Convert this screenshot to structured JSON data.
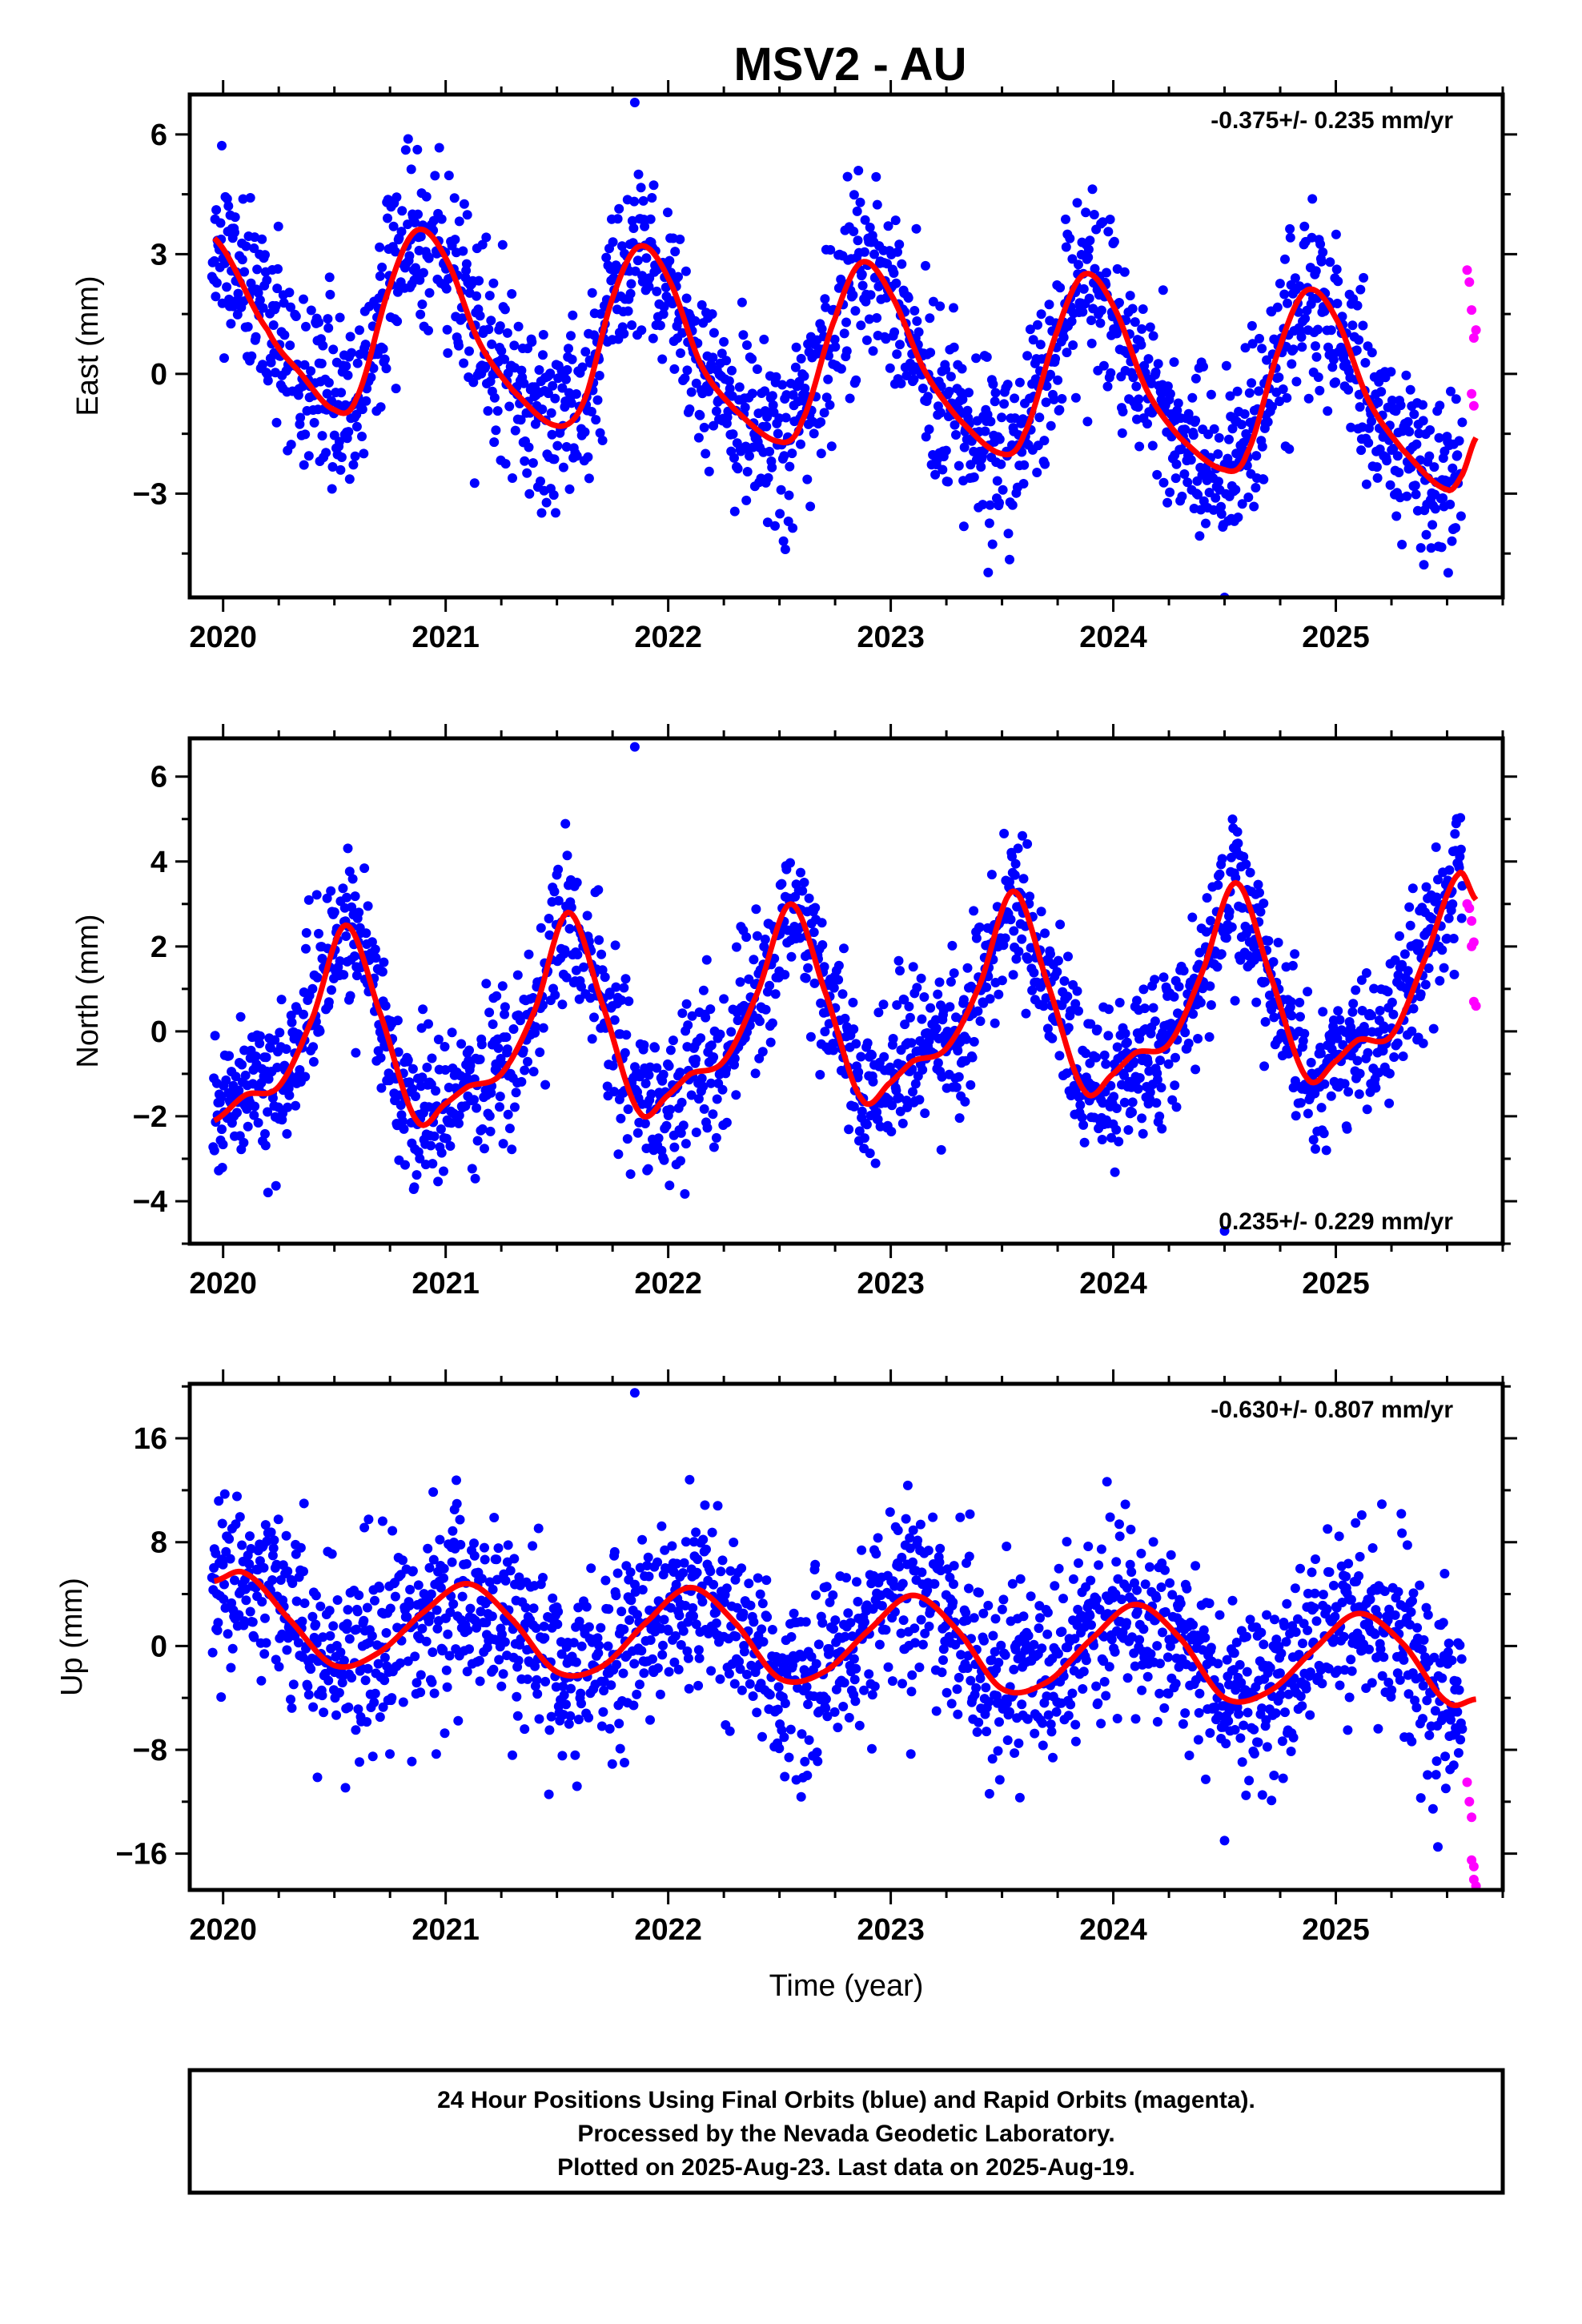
{
  "title": "MSV2 - AU",
  "colors": {
    "final": "#0000ff",
    "rapid": "#ff00ff",
    "model": "#ff0000",
    "frame": "#000000"
  },
  "footer": {
    "lines": [
      "24 Hour Positions Using Final Orbits (blue) and Rapid Orbits (magenta).",
      "Processed by the Nevada Geodetic Laboratory.",
      "Plotted on 2025-Aug-23. Last data on 2025-Aug-19."
    ]
  },
  "chart_data": [
    {
      "type": "scatter",
      "component": "east",
      "ylabel": "East (mm)",
      "xlabel": "",
      "rate_text": "-0.375+/- 0.235 mm/yr",
      "rate_position": "top-right",
      "xlim": [
        2019.85,
        2025.75
      ],
      "ylim": [
        -5.6,
        7.0
      ],
      "xticks": [
        2020,
        2021,
        2022,
        2023,
        2024,
        2025
      ],
      "yticks": [
        -3,
        0,
        3,
        6
      ],
      "model_curve": {
        "name": "",
        "x": [
          2019.96,
          2020.2,
          2020.35,
          2020.5,
          2020.6,
          2020.75,
          2020.87,
          2021.0,
          2021.15,
          2021.3,
          2021.5,
          2021.62,
          2021.75,
          2021.87,
          2022.0,
          2022.15,
          2022.3,
          2022.5,
          2022.6,
          2022.75,
          2022.87,
          2023.0,
          2023.15,
          2023.3,
          2023.5,
          2023.6,
          2023.75,
          2023.87,
          2024.0,
          2024.15,
          2024.3,
          2024.5,
          2024.6,
          2024.75,
          2024.87,
          2025.0,
          2025.15,
          2025.3,
          2025.5,
          2025.57,
          2025.63
        ],
        "y": [
          3.4,
          1.1,
          0.0,
          -0.9,
          -0.6,
          2.2,
          3.6,
          2.9,
          0.8,
          -0.4,
          -1.3,
          -0.7,
          1.9,
          3.2,
          2.4,
          0.2,
          -0.9,
          -1.7,
          -1.2,
          1.4,
          2.8,
          2.0,
          0.1,
          -1.1,
          -2.0,
          -1.5,
          1.1,
          2.5,
          1.7,
          -0.4,
          -1.6,
          -2.4,
          -2.0,
          0.7,
          2.1,
          1.4,
          -0.7,
          -1.9,
          -2.9,
          -2.5,
          -1.6
        ]
      },
      "rapid_points": {
        "x": [
          2025.59,
          2025.6,
          2025.61,
          2025.61,
          2025.62,
          2025.62,
          2025.63
        ],
        "y": [
          2.6,
          2.3,
          1.6,
          -0.5,
          0.9,
          -0.8,
          1.1
        ]
      },
      "final_scatter": {
        "x_range": [
          2019.95,
          2025.57
        ],
        "spread_mm": 1.1,
        "seed": 11,
        "outer_y": [
          -5.6,
          6.8
        ]
      }
    },
    {
      "type": "scatter",
      "component": "north",
      "ylabel": "North (mm)",
      "xlabel": "",
      "rate_text": "0.235+/- 0.229 mm/yr",
      "rate_position": "bottom-right",
      "xlim": [
        2019.85,
        2025.75
      ],
      "ylim": [
        -5.0,
        6.9
      ],
      "xticks": [
        2020,
        2021,
        2022,
        2023,
        2024,
        2025
      ],
      "yticks": [
        -4,
        -2,
        0,
        2,
        4,
        6
      ],
      "model_curve": {
        "name": "",
        "x": [
          2019.96,
          2020.1,
          2020.25,
          2020.4,
          2020.55,
          2020.7,
          2020.87,
          2021.0,
          2021.1,
          2021.25,
          2021.4,
          2021.55,
          2021.7,
          2021.87,
          2022.0,
          2022.1,
          2022.25,
          2022.4,
          2022.55,
          2022.7,
          2022.87,
          2023.0,
          2023.1,
          2023.25,
          2023.4,
          2023.55,
          2023.7,
          2023.87,
          2024.0,
          2024.1,
          2024.25,
          2024.4,
          2024.55,
          2024.7,
          2024.87,
          2025.0,
          2025.1,
          2025.25,
          2025.4,
          2025.55,
          2025.63
        ],
        "y": [
          -2.1,
          -1.5,
          -1.3,
          0.3,
          2.5,
          0.5,
          -2.1,
          -1.7,
          -1.3,
          -1.0,
          0.5,
          2.8,
          0.7,
          -1.9,
          -1.5,
          -1.0,
          -0.7,
          0.9,
          3.0,
          1.0,
          -1.6,
          -1.2,
          -0.7,
          -0.4,
          1.1,
          3.3,
          1.2,
          -1.4,
          -1.0,
          -0.5,
          -0.3,
          1.4,
          3.5,
          1.4,
          -1.1,
          -0.7,
          -0.2,
          -0.1,
          1.7,
          3.7,
          3.1
        ]
      },
      "rapid_points": {
        "x": [
          2025.59,
          2025.6,
          2025.61,
          2025.61,
          2025.62,
          2025.62,
          2025.63
        ],
        "y": [
          3.0,
          2.9,
          2.6,
          2.0,
          0.7,
          2.1,
          0.6
        ]
      },
      "final_scatter": {
        "x_range": [
          2019.95,
          2025.57
        ],
        "spread_mm": 0.9,
        "seed": 23,
        "outer_y": [
          -4.7,
          6.7
        ]
      }
    },
    {
      "type": "scatter",
      "component": "up",
      "ylabel": "Up (mm)",
      "xlabel": "Time (year)",
      "rate_text": "-0.630+/- 0.807 mm/yr",
      "rate_position": "top-right",
      "xlim": [
        2019.85,
        2025.75
      ],
      "ylim": [
        -18.8,
        20.2
      ],
      "xticks": [
        2020,
        2021,
        2022,
        2023,
        2024,
        2025
      ],
      "yticks": [
        -16,
        -8,
        0,
        8,
        16
      ],
      "model_curve": {
        "name": "",
        "x": [
          2019.96,
          2020.1,
          2020.3,
          2020.5,
          2020.7,
          2020.9,
          2021.1,
          2021.3,
          2021.5,
          2021.7,
          2021.9,
          2022.1,
          2022.3,
          2022.5,
          2022.7,
          2022.9,
          2023.1,
          2023.3,
          2023.5,
          2023.7,
          2023.9,
          2024.1,
          2024.3,
          2024.5,
          2024.7,
          2024.9,
          2025.1,
          2025.3,
          2025.5,
          2025.63
        ],
        "y": [
          5.0,
          5.6,
          2.0,
          -1.5,
          -0.5,
          2.6,
          4.8,
          2.0,
          -2.0,
          -1.6,
          1.8,
          4.5,
          1.8,
          -2.5,
          -2.0,
          1.2,
          3.9,
          1.2,
          -3.3,
          -2.8,
          0.5,
          3.2,
          0.6,
          -4.0,
          -3.5,
          -0.3,
          2.5,
          0.2,
          -4.3,
          -4.1
        ]
      },
      "rapid_points": {
        "x": [
          2025.59,
          2025.6,
          2025.61,
          2025.61,
          2025.62,
          2025.62,
          2025.63
        ],
        "y": [
          -10.5,
          -12.0,
          -13.2,
          -16.5,
          -17.0,
          -18.0,
          -18.5
        ]
      },
      "final_scatter": {
        "x_range": [
          2019.95,
          2025.57
        ],
        "spread_mm": 3.6,
        "seed": 37,
        "outer_y": [
          -15.0,
          19.5
        ]
      }
    }
  ]
}
